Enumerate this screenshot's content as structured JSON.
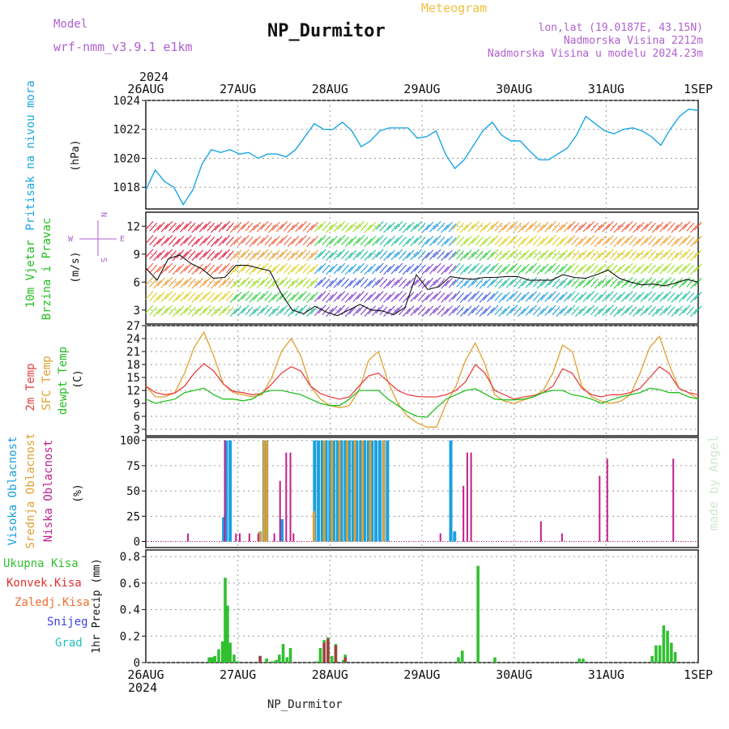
{
  "header": {
    "model_label": "Model",
    "model_name": "wrf-nmm_v3.9.1  e1km",
    "station": "NP_Durmitor",
    "product": "Meteogram",
    "lonlat": "lon,lat (19.0187E, 43.15N)",
    "elevation": "Nadmorska Visina 2212m",
    "model_elevation": "Nadmorska Visina u modelu 2024.23m"
  },
  "footer": {
    "station": "NP_Durmitor"
  },
  "watermark": "made by Angel",
  "time_axis": {
    "year": "2024",
    "labels": [
      "26AUG",
      "27AUG",
      "28AUG",
      "29AUG",
      "30AUG",
      "31AUG",
      "1SEP"
    ]
  },
  "panels": {
    "pressure": {
      "ylabel": "Pritisak na nivou mora",
      "unit": "(hPa)",
      "ticks": [
        "1018",
        "1020",
        "1022",
        "1024"
      ]
    },
    "wind": {
      "ylabel1": "10m Vjetar",
      "ylabel2": "Brzina i Pravac",
      "unit": "(m/s)",
      "ticks": [
        "3",
        "6",
        "9",
        "12"
      ],
      "compass": {
        "n": "N",
        "s": "S",
        "e": "E",
        "w": "W"
      }
    },
    "temp": {
      "ylabel1": "2m Temp",
      "ylabel2": "SFC Temp",
      "ylabel3": "dewpt Temp",
      "unit": "(C)",
      "ticks": [
        "3",
        "6",
        "9",
        "12",
        "15",
        "18",
        "21",
        "24",
        "27"
      ]
    },
    "cloud": {
      "ylabel1": "Visoka Oblacnost",
      "ylabel2": "Srednja Oblacnost",
      "ylabel3": "Niska Oblacnost",
      "unit": "(%)",
      "ticks": [
        "0",
        "25",
        "50",
        "75",
        "100"
      ]
    },
    "precip": {
      "ylabel": "1hr Precip (mm)",
      "ticks": [
        "0",
        "0.2",
        "0.4",
        "0.6",
        "0.8"
      ],
      "legend": [
        "Ukupna Kisa",
        "Konvek.Kisa",
        "Zaledj.Kisa",
        "Snijeg",
        "Grad"
      ]
    }
  },
  "colors": {
    "pressure": "#1aa6e6",
    "t2m": "#e84040",
    "sfc": "#e0a030",
    "dewpt": "#22c020",
    "high_cloud": "#1aa0e0",
    "mid_cloud": "#e0a030",
    "low_cloud": "#c0208a",
    "rain_total": "#30c030",
    "rain_conv": "#e03030",
    "freezing": "#f07030",
    "snow": "#4040e0",
    "hail": "#20c0c0",
    "model_title": "#b060d0",
    "product_title": "#f0c040"
  },
  "chart_data": [
    {
      "type": "line",
      "title": "",
      "ylabel": "Pritisak na nivou mora (hPa)",
      "ylim": [
        1016.5,
        1024
      ],
      "x_range_hours": [
        0,
        144
      ],
      "series": [
        {
          "values_every_6h": [
            1017.8,
            1019.2,
            1018.4,
            1018.0,
            1016.8,
            1017.8,
            1019.6,
            1020.6,
            1020.4,
            1020.6,
            1020.3,
            1020.4,
            1020.0,
            1020.3,
            1020.3,
            1020.1,
            1020.6,
            1021.5,
            1022.4,
            1022.0,
            1022.0,
            1022.5,
            1021.9,
            1020.8,
            1021.2,
            1021.9,
            1022.1,
            1022.1,
            1022.1,
            1021.4,
            1021.5,
            1021.9,
            1020.3,
            1019.3,
            1019.9,
            1020.9,
            1021.9,
            1022.5,
            1021.6,
            1021.2,
            1021.2,
            1020.5,
            1019.9,
            1019.9,
            1020.3,
            1020.7,
            1021.6,
            1022.9,
            1022.4,
            1021.9,
            1021.7,
            1022.0,
            1022.1,
            1021.9,
            1021.5,
            1020.9,
            1022.0,
            1022.9,
            1023.4,
            1023.3
          ]
        }
      ]
    },
    {
      "type": "line",
      "title": "",
      "ylabel": "10m Vjetar Brzina i Pravac (m/s)",
      "ylim": [
        1.5,
        13.5
      ],
      "series": [
        {
          "values_every_6h": [
            7.5,
            6.2,
            8.5,
            8.9,
            8.0,
            7.4,
            6.4,
            6.5,
            7.8,
            7.8,
            7.5,
            7.2,
            4.8,
            3.0,
            2.6,
            3.4,
            2.8,
            2.4,
            3.0,
            3.6,
            3.0,
            2.9,
            2.5,
            3.3,
            6.8,
            5.2,
            5.5,
            6.6,
            6.4,
            6.3,
            6.5,
            6.5,
            6.6,
            6.6,
            6.2,
            6.2,
            6.2,
            6.8,
            6.5,
            6.4,
            6.8,
            7.3,
            6.4,
            6.0,
            5.7,
            5.8,
            5.6,
            5.9,
            6.3,
            6.0
          ]
        }
      ]
    },
    {
      "type": "line",
      "title": "",
      "ylabel": "Temp (C)",
      "ylim": [
        1.5,
        27
      ],
      "series": [
        {
          "name": "2m Temp",
          "values_every_3h": [
            13,
            11.5,
            11,
            11.4,
            13,
            16,
            18.2,
            16.5,
            13.5,
            11.8,
            11.5,
            11,
            11.3,
            13.5,
            16,
            17.5,
            16.5,
            13,
            11.3,
            10.5,
            10,
            10.5,
            13,
            15.4,
            16,
            14,
            12,
            11,
            10.6,
            10.5,
            10.5,
            11,
            12,
            14,
            18,
            16,
            12,
            11,
            10,
            10.5,
            10.8,
            11.5,
            13,
            17,
            16,
            12.5,
            11,
            10.5,
            11,
            11,
            11.5,
            12.5,
            15,
            17.5,
            16,
            12.5,
            11.5,
            11
          ]
        },
        {
          "name": "SFC Temp",
          "values_every_3h": [
            13,
            10.5,
            10.5,
            11.5,
            16,
            22,
            25.5,
            20,
            13.5,
            11.5,
            11,
            10.5,
            11,
            15,
            21,
            24,
            20,
            13,
            10,
            8.5,
            8,
            8.5,
            12,
            19,
            21,
            14,
            9,
            6,
            4.5,
            3.5,
            3.5,
            9,
            13,
            19,
            23,
            18,
            11,
            9.5,
            9,
            9.8,
            10.5,
            12,
            16,
            22.5,
            21,
            13,
            10.5,
            9.5,
            9,
            9.5,
            11,
            16,
            22,
            24.5,
            18,
            12.5,
            11.5,
            10
          ]
        },
        {
          "name": "dewpt Temp",
          "values_every_3h": [
            10,
            9,
            9.5,
            10,
            11.5,
            12,
            12.5,
            11,
            10,
            10,
            9.6,
            10,
            11.5,
            12,
            12,
            11.5,
            11,
            10,
            9,
            8.5,
            8.5,
            10,
            12,
            12,
            12,
            10,
            8.5,
            7,
            6,
            5.8,
            8,
            10,
            11,
            12,
            12.4,
            11.2,
            10,
            9.8,
            9.8,
            10,
            10.5,
            11.5,
            12,
            12,
            11,
            10.6,
            10,
            9,
            9.8,
            10.5,
            11,
            11.5,
            12.5,
            12.2,
            11.5,
            11.5,
            10.5,
            10
          ]
        }
      ]
    },
    {
      "type": "bar",
      "title": "",
      "ylabel": "Oblacnost (%)",
      "ylim": [
        0,
        100
      ],
      "series": [
        {
          "name": "Visoka Oblacnost",
          "bars": [
            [
              20.3,
              24
            ],
            [
              21,
              100
            ],
            [
              22,
              100
            ],
            [
              29.8,
              10
            ],
            [
              30.8,
              100
            ],
            [
              31.5,
              100
            ],
            [
              35.5,
              22
            ],
            [
              44,
              100
            ],
            [
              45,
              100
            ],
            [
              46,
              100
            ],
            [
              47,
              100
            ],
            [
              48,
              100
            ],
            [
              49,
              100
            ],
            [
              50,
              100
            ],
            [
              51,
              100
            ],
            [
              52,
              100
            ],
            [
              53,
              100
            ],
            [
              54,
              100
            ],
            [
              55,
              100
            ],
            [
              56,
              100
            ],
            [
              57,
              100
            ],
            [
              58,
              100
            ],
            [
              59,
              100
            ],
            [
              60,
              100
            ],
            [
              61,
              100
            ],
            [
              62,
              100
            ],
            [
              63,
              100
            ],
            [
              79.5,
              100
            ],
            [
              80.5,
              10
            ]
          ]
        },
        {
          "name": "Srednja Oblacnost",
          "bars": [
            [
              29.8,
              10
            ],
            [
              30.8,
              100
            ],
            [
              31.5,
              100
            ],
            [
              43.8,
              30
            ],
            [
              46.5,
              100
            ],
            [
              48.5,
              100
            ],
            [
              50.5,
              100
            ],
            [
              52.5,
              100
            ],
            [
              54.5,
              100
            ],
            [
              56.5,
              100
            ],
            [
              58.5,
              100
            ],
            [
              62,
              100
            ]
          ]
        },
        {
          "name": "Niska Oblacnost",
          "bars": [
            [
              11,
              8
            ],
            [
              20.6,
              100
            ],
            [
              23.5,
              8
            ],
            [
              24.5,
              8
            ],
            [
              27,
              8
            ],
            [
              29.3,
              8
            ],
            [
              33.5,
              8
            ],
            [
              35,
              60
            ],
            [
              36.6,
              88
            ],
            [
              37.7,
              88
            ],
            [
              38.5,
              8
            ],
            [
              76.8,
              8
            ],
            [
              82.8,
              55
            ],
            [
              83.8,
              88
            ],
            [
              84.8,
              88
            ],
            [
              103,
              20
            ],
            [
              108.5,
              8
            ],
            [
              118.3,
              65
            ],
            [
              120.3,
              82
            ],
            [
              137.5,
              82
            ]
          ]
        }
      ]
    },
    {
      "type": "bar",
      "title": "",
      "ylabel": "1hr Precip (mm)",
      "ylim": [
        0,
        0.85
      ],
      "series": [
        {
          "name": "Ukupna Kisa",
          "bars": [
            [
              16.5,
              0.04
            ],
            [
              17,
              0.04
            ],
            [
              17.5,
              0.04
            ],
            [
              18,
              0.05
            ],
            [
              19,
              0.1
            ],
            [
              20,
              0.16
            ],
            [
              20.7,
              0.64
            ],
            [
              21.3,
              0.43
            ],
            [
              22,
              0.15
            ],
            [
              23,
              0.06
            ],
            [
              24,
              0.01
            ],
            [
              29.8,
              0.05
            ],
            [
              31.5,
              0.03
            ],
            [
              33,
              0.01
            ],
            [
              34,
              0.02
            ],
            [
              34.8,
              0.06
            ],
            [
              35.8,
              0.14
            ],
            [
              36.8,
              0.04
            ],
            [
              37.7,
              0.11
            ],
            [
              44.5,
              0.01
            ],
            [
              45.5,
              0.11
            ],
            [
              46.5,
              0.17
            ],
            [
              47.5,
              0.19
            ],
            [
              48.5,
              0.05
            ],
            [
              49.5,
              0.14
            ],
            [
              51.5,
              0.02
            ],
            [
              52,
              0.06
            ],
            [
              81.5,
              0.04
            ],
            [
              82.5,
              0.09
            ],
            [
              86.6,
              0.73
            ],
            [
              91,
              0.04
            ],
            [
              113,
              0.03
            ],
            [
              114,
              0.03
            ],
            [
              132,
              0.05
            ],
            [
              133,
              0.13
            ],
            [
              134,
              0.13
            ],
            [
              135,
              0.28
            ],
            [
              136,
              0.24
            ],
            [
              137,
              0.15
            ],
            [
              138,
              0.08
            ]
          ]
        },
        {
          "name": "Konvek.Kisa",
          "bars": [
            [
              29.8,
              0.05
            ],
            [
              46.5,
              0.15
            ],
            [
              47.5,
              0.18
            ],
            [
              49.5,
              0.13
            ],
            [
              52,
              0.04
            ]
          ]
        }
      ]
    }
  ]
}
